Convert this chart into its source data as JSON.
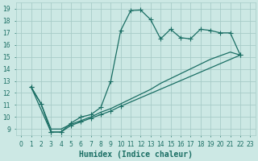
{
  "xlabel": "Humidex (Indice chaleur)",
  "bg_color": "#cce8e4",
  "grid_color": "#a8ccc8",
  "line_color": "#1a6e64",
  "xlim": [
    -0.5,
    23.5
  ],
  "ylim": [
    8.5,
    19.5
  ],
  "xticks": [
    0,
    1,
    2,
    3,
    4,
    5,
    6,
    7,
    8,
    9,
    10,
    11,
    12,
    13,
    14,
    15,
    16,
    17,
    18,
    19,
    20,
    21,
    22,
    23
  ],
  "yticks": [
    9,
    10,
    11,
    12,
    13,
    14,
    15,
    16,
    17,
    18,
    19
  ],
  "series1_x": [
    1,
    2,
    3,
    4,
    5,
    6,
    7,
    8,
    9,
    10,
    11,
    12,
    13,
    14,
    15,
    16,
    17,
    18,
    19,
    20,
    21,
    22
  ],
  "series1_y": [
    12.5,
    11.1,
    8.75,
    8.75,
    9.5,
    10.0,
    10.2,
    10.8,
    13.0,
    17.2,
    18.85,
    18.9,
    18.1,
    16.5,
    17.3,
    16.6,
    16.5,
    17.3,
    17.2,
    17.0,
    17.0,
    15.15
  ],
  "series2_x": [
    1,
    3,
    4,
    5,
    6,
    7,
    8,
    9,
    10,
    22
  ],
  "series2_y": [
    12.5,
    8.75,
    8.75,
    9.3,
    9.6,
    9.9,
    10.2,
    10.5,
    10.9,
    15.15
  ],
  "series3_x": [
    1,
    2,
    3,
    4,
    5,
    6,
    7,
    8,
    9,
    10,
    11,
    12,
    13,
    14,
    15,
    16,
    17,
    18,
    19,
    20,
    21,
    22
  ],
  "series3_y": [
    12.5,
    11.1,
    9.0,
    9.0,
    9.4,
    9.7,
    10.0,
    10.4,
    10.7,
    11.1,
    11.5,
    11.9,
    12.3,
    12.8,
    13.2,
    13.6,
    14.0,
    14.4,
    14.8,
    15.1,
    15.4,
    15.15
  ],
  "xlabel_fontsize": 7,
  "tick_fontsize": 5.5
}
